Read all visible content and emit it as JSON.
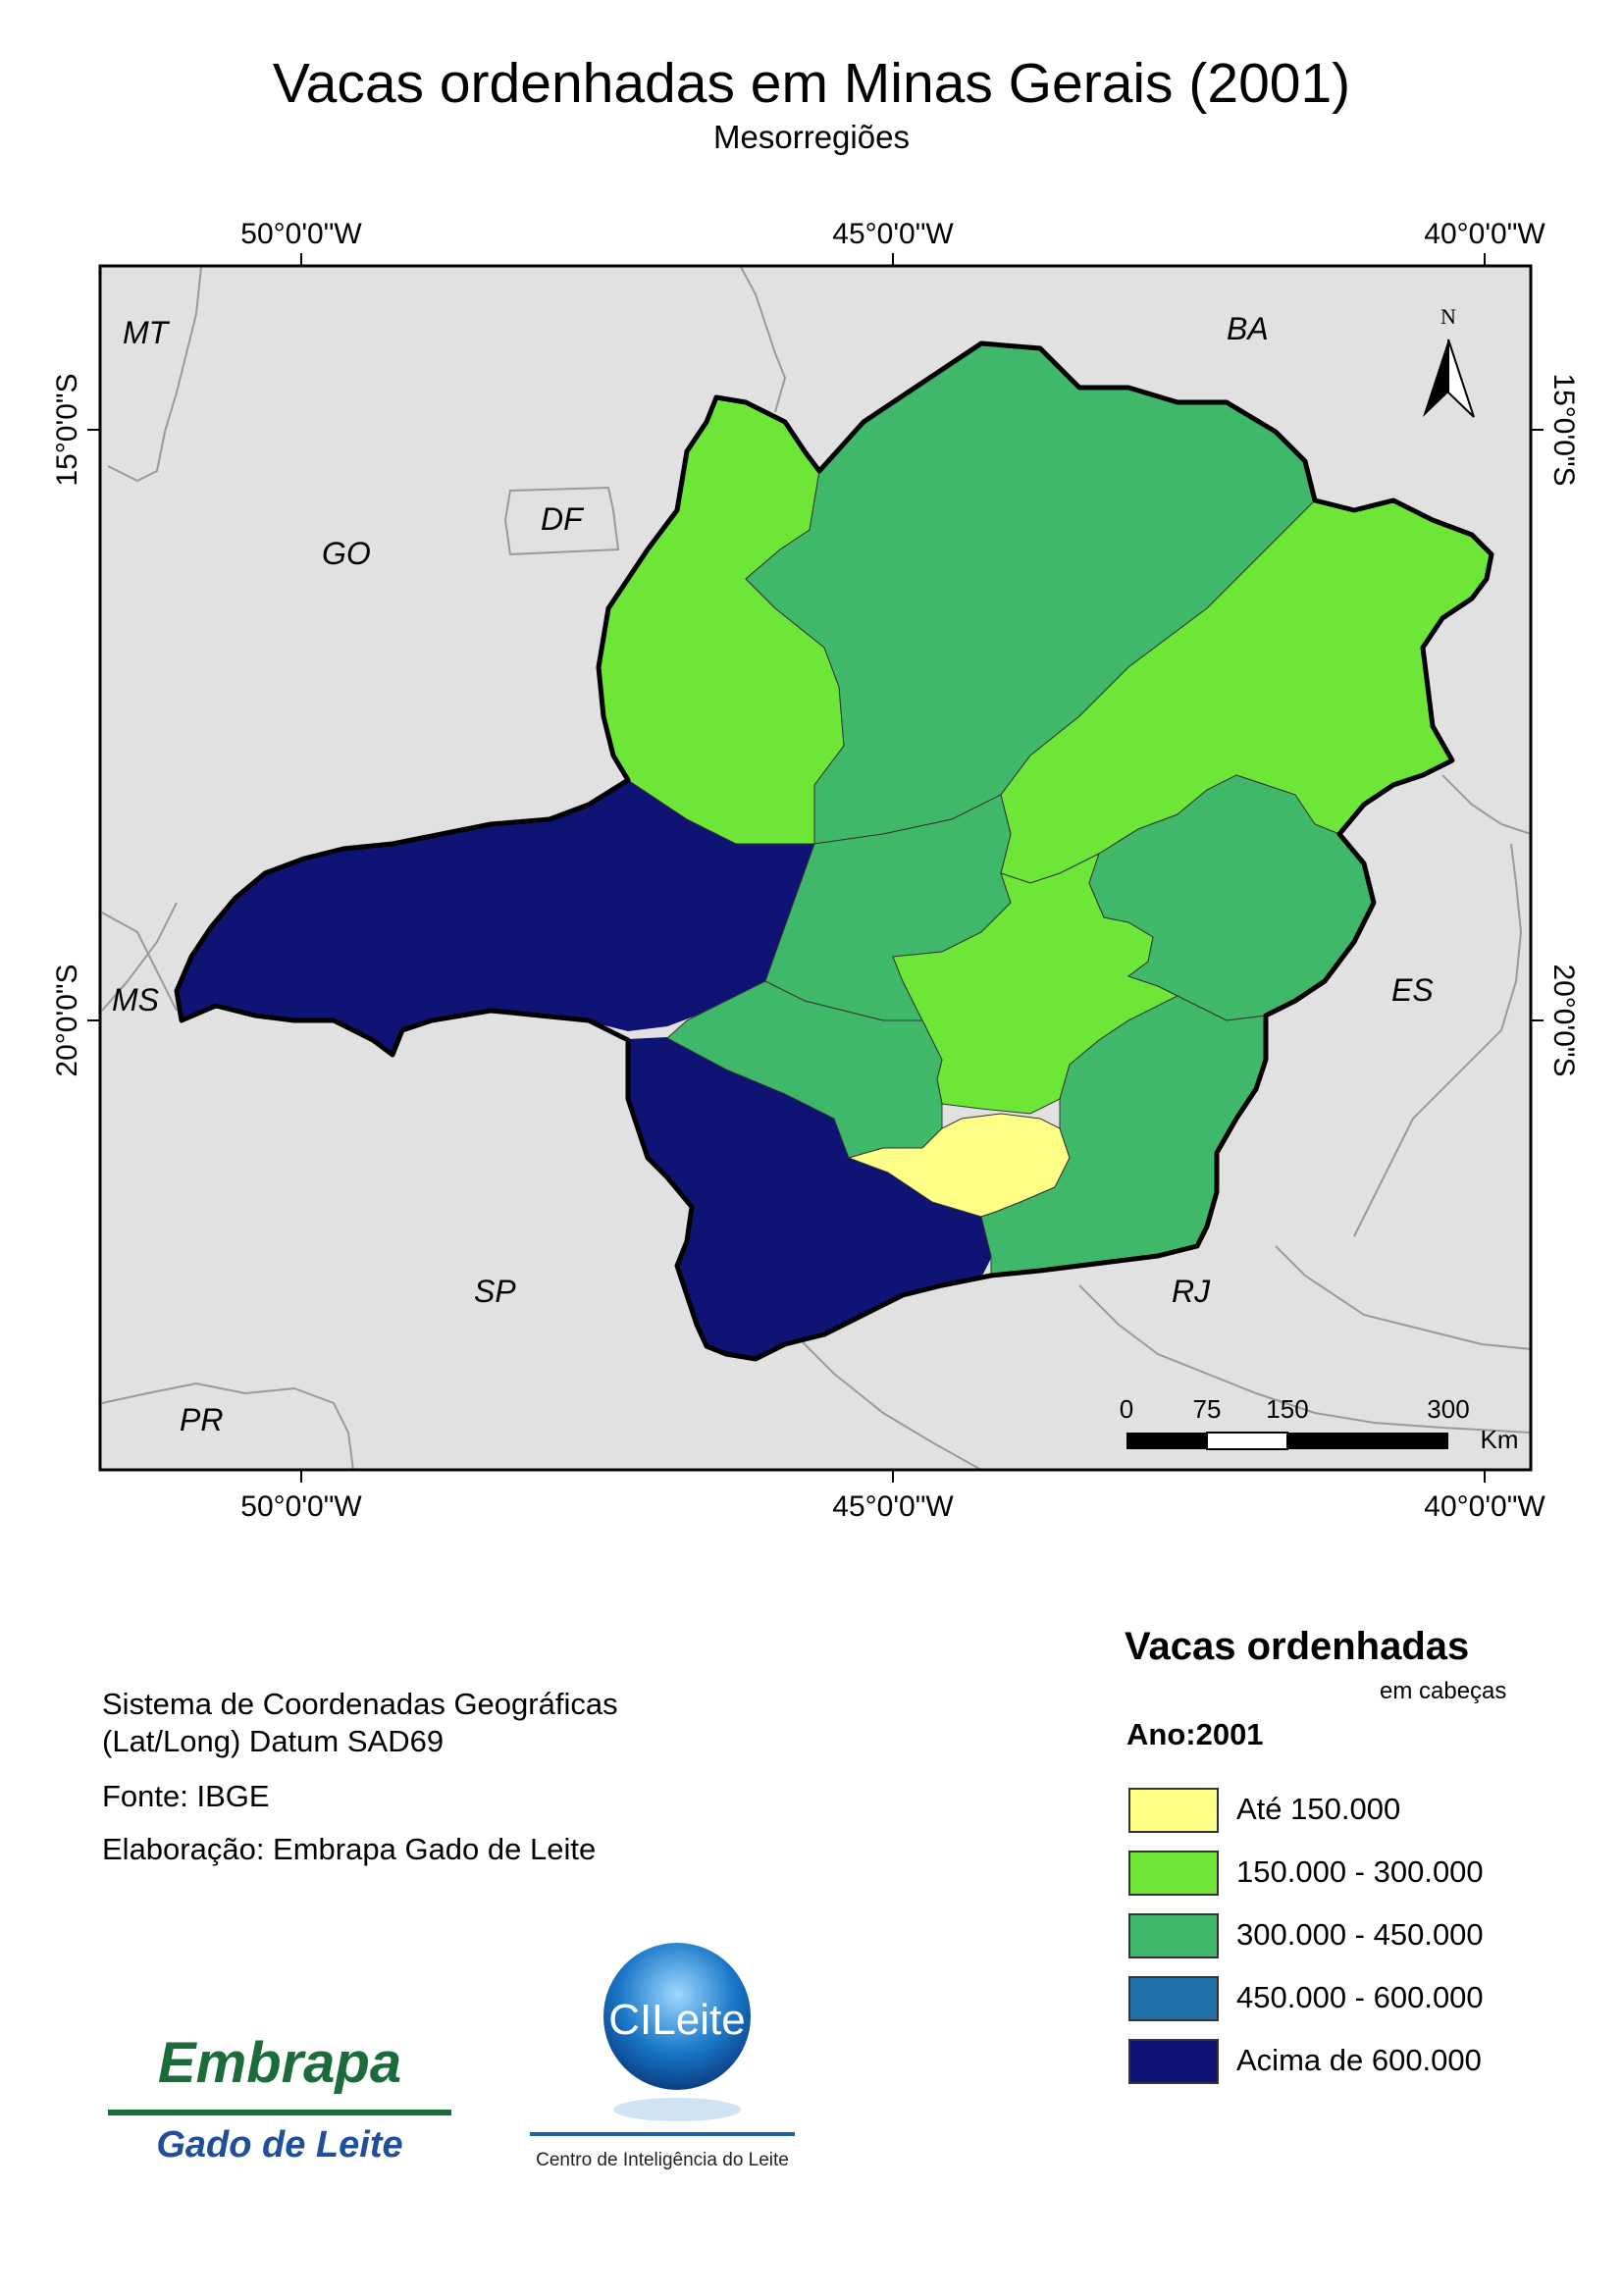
{
  "map": {
    "title": "Vacas ordenhadas em Minas Gerais (2001)",
    "subtitle": "Mesorregiões",
    "top_axis_labels": [
      "50°0'0\"W",
      "45°0'0\"W",
      "40°0'0\"W"
    ],
    "bottom_axis_labels": [
      "50°0'0\"W",
      "45°0'0\"W",
      "40°0'0\"W"
    ],
    "left_axis_labels": [
      "15°0'0\"S",
      "20°0'0\"S"
    ],
    "right_axis_labels": [
      "15°0'0\"S",
      "20°0'0\"S"
    ],
    "state_labels": [
      "MT",
      "BA",
      "GO",
      "DF",
      "MS",
      "ES",
      "SP",
      "RJ",
      "PR"
    ],
    "north_arrow": "N",
    "north_arrow_icon": "north-arrow-icon",
    "scale_bar": {
      "ticks": [
        "0",
        "75",
        "150",
        "300"
      ],
      "unit": "Km"
    },
    "colors": {
      "ocean_background": "#e1e1e1",
      "ate_150000": "#ffff88",
      "de_150000_a_300000": "#6ee637",
      "de_300000_a_450000": "#3fb86a",
      "de_450000_a_600000": "#1f6fa8",
      "acima_600000": "#0f1373"
    }
  },
  "info": {
    "line1": "Sistema de Coordenadas Geográficas",
    "line2": "(Lat/Long) Datum SAD69",
    "source": "Fonte: IBGE",
    "author": "Elaboração: Embrapa Gado de Leite"
  },
  "legend": {
    "title": "Vacas ordenhadas",
    "unit": "em cabeças",
    "year": "Ano:2001",
    "classes": [
      {
        "label": "Até 150.000",
        "color": "#ffff88"
      },
      {
        "label": "150.000 - 300.000",
        "color": "#6ee637"
      },
      {
        "label": "300.000 - 450.000",
        "color": "#3fb86a"
      },
      {
        "label": "450.000 - 600.000",
        "color": "#1f6fa8"
      },
      {
        "label": "Acima de 600.000",
        "color": "#0f1373"
      }
    ]
  },
  "logos": {
    "embrapa_word": "Embrapa",
    "embrapa_sub": "Gado de Leite",
    "cileite_word": "CILeite",
    "cileite_sub": "Centro de Inteligência do Leite"
  }
}
